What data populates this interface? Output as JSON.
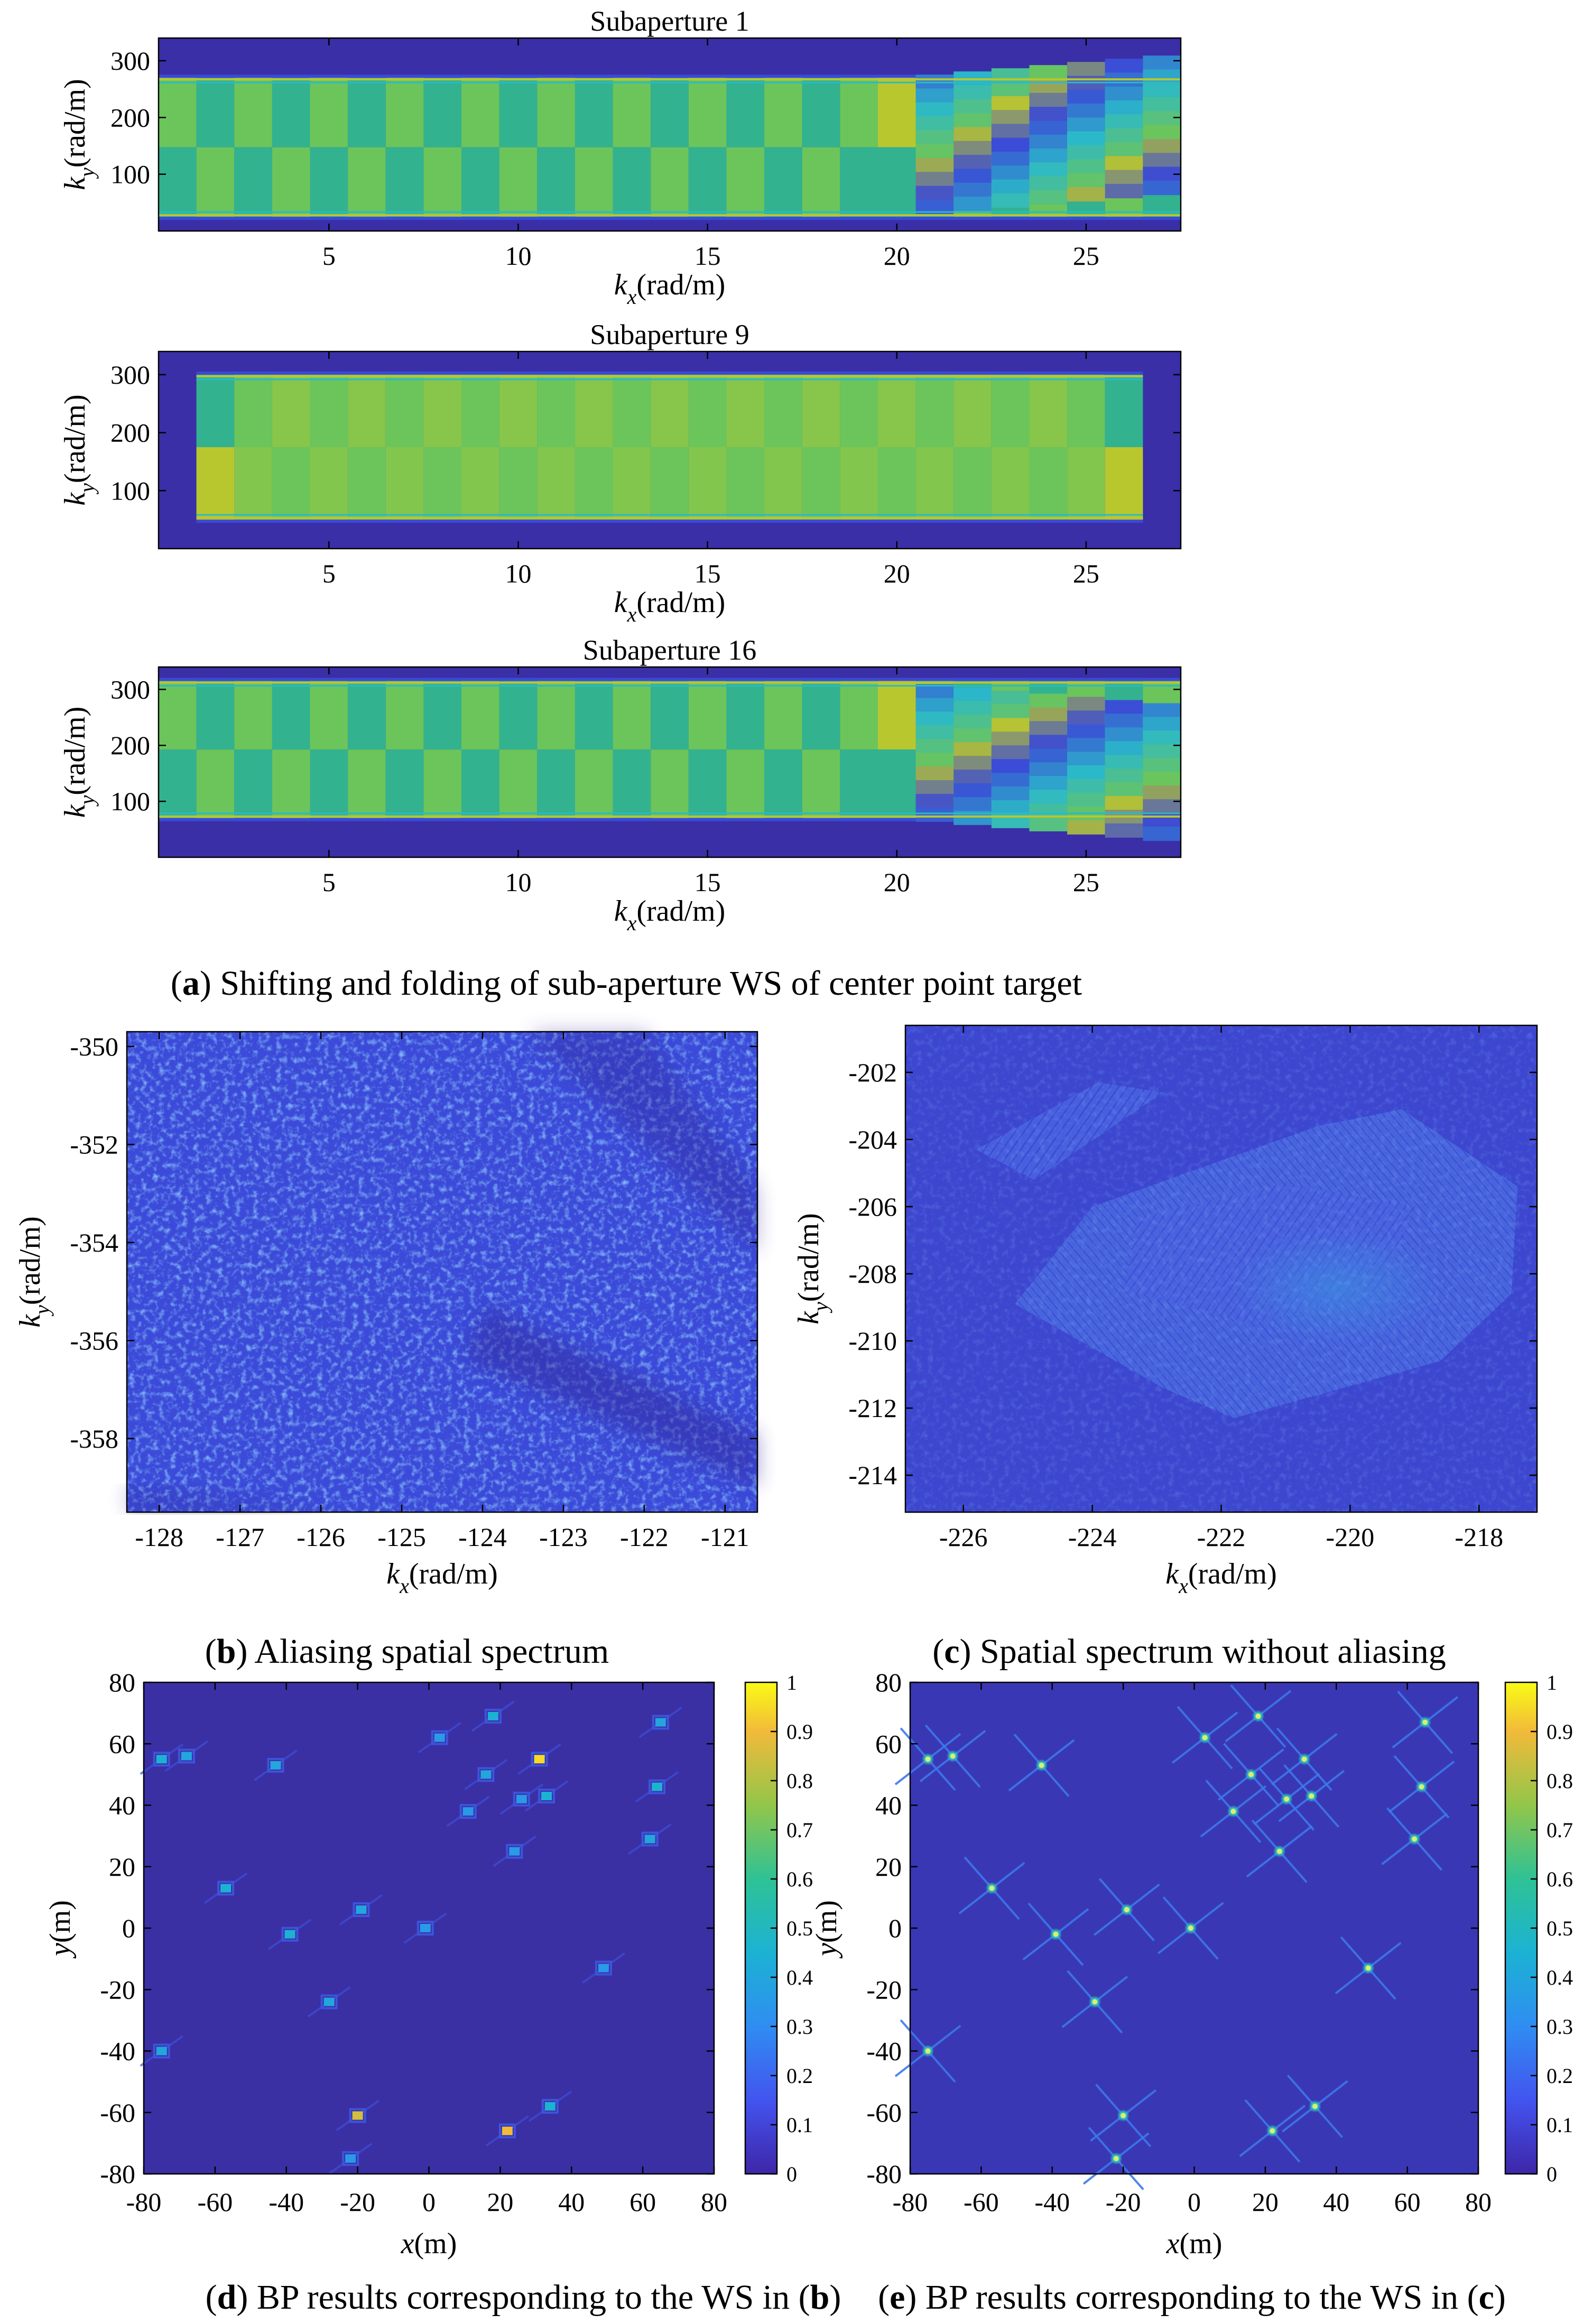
{
  "colors": {
    "bg_dark": "#3a2fa6",
    "bg_blue": "#3b49d6",
    "band_mid": "#33b28f",
    "band_green": "#6cc55a",
    "band_yellow": "#b9c72e",
    "peak_yellow": "#f9e520",
    "cyan": "#2bb9c9",
    "axis": "#000000"
  },
  "chart_data": [
    {
      "id": "a1",
      "type": "heatmap",
      "title": "Subaperture 1",
      "xlabel": "k_x(rad/m)",
      "ylabel": "k_y(rad/m)",
      "xlim": [
        0.5,
        27.5
      ],
      "ylim": [
        0,
        340
      ],
      "xticks": [
        "5",
        "10",
        "15",
        "20",
        "25"
      ],
      "xtick_values": [
        5,
        10,
        15,
        20,
        25
      ],
      "yticks": [
        "300",
        "200",
        "100"
      ],
      "ytick_values": [
        300,
        200,
        100
      ],
      "band": [
        25,
        270
      ],
      "shifted_columns": [
        20.5,
        21.5,
        22.5,
        23.5,
        24.5,
        25.5,
        26.5
      ]
    },
    {
      "id": "a9",
      "type": "heatmap",
      "title": "Subaperture 9",
      "xlabel": "k_x(rad/m)",
      "ylabel": "k_y(rad/m)",
      "xlim": [
        0.5,
        27.5
      ],
      "ylim": [
        0,
        340
      ],
      "xticks": [
        "5",
        "10",
        "15",
        "20",
        "25"
      ],
      "xtick_values": [
        5,
        10,
        15,
        20,
        25
      ],
      "yticks": [
        "300",
        "200",
        "100"
      ],
      "ytick_values": [
        300,
        200,
        100
      ],
      "band": [
        50,
        300
      ],
      "kx_range": [
        1.5,
        26.5
      ]
    },
    {
      "id": "a16",
      "type": "heatmap",
      "title": "Subaperture 16",
      "xlabel": "k_x(rad/m)",
      "ylabel": "k_y(rad/m)",
      "xlim": [
        0.5,
        27.5
      ],
      "ylim": [
        0,
        340
      ],
      "xticks": [
        "5",
        "10",
        "15",
        "20",
        "25"
      ],
      "xtick_values": [
        5,
        10,
        15,
        20,
        25
      ],
      "yticks": [
        "300",
        "200",
        "100"
      ],
      "ytick_values": [
        300,
        200,
        100
      ],
      "band": [
        70,
        315
      ],
      "shifted_columns": [
        20.5,
        21.5,
        22.5,
        23.5,
        24.5,
        25.5,
        26.5
      ]
    },
    {
      "id": "b",
      "type": "heatmap",
      "xlabel": "k_x(rad/m)",
      "ylabel": "k_y(rad/m)",
      "xlim": [
        -128.4,
        -120.6
      ],
      "ylim": [
        -359.5,
        -349.7
      ],
      "xticks": [
        "-128",
        "-127",
        "-126",
        "-125",
        "-124",
        "-123",
        "-122",
        "-121"
      ],
      "xtick_values": [
        -128,
        -127,
        -126,
        -125,
        -124,
        -123,
        -122,
        -121
      ],
      "yticks": [
        "-350",
        "-352",
        "-354",
        "-356",
        "-358"
      ],
      "ytick_values": [
        -350,
        -352,
        -354,
        -356,
        -358
      ]
    },
    {
      "id": "c",
      "type": "heatmap",
      "xlabel": "k_x(rad/m)",
      "ylabel": "k_y(rad/m)",
      "xlim": [
        -226.9,
        -217.1
      ],
      "ylim": [
        -215.1,
        -200.6
      ],
      "xticks": [
        "-226",
        "-224",
        "-222",
        "-220",
        "-218"
      ],
      "xtick_values": [
        -226,
        -224,
        -222,
        -220,
        -218
      ],
      "yticks": [
        "-202",
        "-204",
        "-206",
        "-208",
        "-210",
        "-212",
        "-214"
      ],
      "ytick_values": [
        -202,
        -204,
        -206,
        -208,
        -210,
        -212,
        -214
      ]
    },
    {
      "id": "d",
      "type": "scatter",
      "xlabel": "x(m)",
      "ylabel": "y(m)",
      "xlim": [
        -80,
        80
      ],
      "ylim": [
        -80,
        80
      ],
      "xticks": [
        "-80",
        "-60",
        "-40",
        "-20",
        "0",
        "20",
        "40",
        "60",
        "80"
      ],
      "xtick_values": [
        -80,
        -60,
        -40,
        -20,
        0,
        20,
        40,
        60,
        80
      ],
      "yticks": [
        "80",
        "60",
        "40",
        "20",
        "0",
        "-20",
        "-40",
        "-60",
        "-80"
      ],
      "ytick_values": [
        80,
        60,
        40,
        20,
        0,
        -20,
        -40,
        -60,
        -80
      ],
      "colorbar_ticks": [
        "1",
        "0.9",
        "0.8",
        "0.7",
        "0.6",
        "0.5",
        "0.4",
        "0.3",
        "0.2",
        "0.1",
        "0"
      ],
      "colorbar_values": [
        1,
        0.9,
        0.8,
        0.7,
        0.6,
        0.5,
        0.4,
        0.3,
        0.2,
        0.1,
        0
      ],
      "points": [
        {
          "x": -75,
          "y": 55,
          "v": 0.45
        },
        {
          "x": -68,
          "y": 56,
          "v": 0.4
        },
        {
          "x": -43,
          "y": 53,
          "v": 0.4
        },
        {
          "x": 3,
          "y": 62,
          "v": 0.35
        },
        {
          "x": 18,
          "y": 69,
          "v": 0.45
        },
        {
          "x": 31,
          "y": 55,
          "v": 0.95
        },
        {
          "x": 65,
          "y": 67,
          "v": 0.4
        },
        {
          "x": 16,
          "y": 50,
          "v": 0.4
        },
        {
          "x": 26,
          "y": 42,
          "v": 0.35
        },
        {
          "x": 33,
          "y": 43,
          "v": 0.45
        },
        {
          "x": 11,
          "y": 38,
          "v": 0.35
        },
        {
          "x": 64,
          "y": 46,
          "v": 0.45
        },
        {
          "x": 24,
          "y": 25,
          "v": 0.35
        },
        {
          "x": 62,
          "y": 29,
          "v": 0.4
        },
        {
          "x": -57,
          "y": 13,
          "v": 0.45
        },
        {
          "x": -19,
          "y": 6,
          "v": 0.4
        },
        {
          "x": -1,
          "y": 0,
          "v": 0.35
        },
        {
          "x": -39,
          "y": -2,
          "v": 0.45
        },
        {
          "x": 49,
          "y": -13,
          "v": 0.35
        },
        {
          "x": -28,
          "y": -24,
          "v": 0.4
        },
        {
          "x": -75,
          "y": -40,
          "v": 0.4
        },
        {
          "x": 34,
          "y": -58,
          "v": 0.45
        },
        {
          "x": -20,
          "y": -61,
          "v": 0.85
        },
        {
          "x": 22,
          "y": -66,
          "v": 0.9
        },
        {
          "x": -22,
          "y": -75,
          "v": 0.35
        }
      ]
    },
    {
      "id": "e",
      "type": "scatter",
      "xlabel": "x(m)",
      "ylabel": "y(m)",
      "xlim": [
        -80,
        80
      ],
      "ylim": [
        -80,
        80
      ],
      "xticks": [
        "-80",
        "-60",
        "-40",
        "-20",
        "0",
        "20",
        "40",
        "60",
        "80"
      ],
      "xtick_values": [
        -80,
        -60,
        -40,
        -20,
        0,
        20,
        40,
        60,
        80
      ],
      "yticks": [
        "80",
        "60",
        "40",
        "20",
        "0",
        "-20",
        "-40",
        "-60",
        "-80"
      ],
      "ytick_values": [
        80,
        60,
        40,
        20,
        0,
        -20,
        -40,
        -60,
        -80
      ],
      "colorbar_ticks": [
        "1",
        "0.9",
        "0.8",
        "0.7",
        "0.6",
        "0.5",
        "0.4",
        "0.3",
        "0.2",
        "0.1",
        "0"
      ],
      "colorbar_values": [
        1,
        0.9,
        0.8,
        0.7,
        0.6,
        0.5,
        0.4,
        0.3,
        0.2,
        0.1,
        0
      ],
      "points": [
        {
          "x": -75,
          "y": 55,
          "v": 0.6
        },
        {
          "x": -68,
          "y": 56,
          "v": 0.6
        },
        {
          "x": -43,
          "y": 53,
          "v": 0.6
        },
        {
          "x": 3,
          "y": 62,
          "v": 0.6
        },
        {
          "x": 18,
          "y": 69,
          "v": 0.6
        },
        {
          "x": 31,
          "y": 55,
          "v": 0.6
        },
        {
          "x": 65,
          "y": 67,
          "v": 0.6
        },
        {
          "x": 16,
          "y": 50,
          "v": 0.6
        },
        {
          "x": 26,
          "y": 42,
          "v": 0.6
        },
        {
          "x": 33,
          "y": 43,
          "v": 0.6
        },
        {
          "x": 11,
          "y": 38,
          "v": 0.6
        },
        {
          "x": 64,
          "y": 46,
          "v": 0.6
        },
        {
          "x": 24,
          "y": 25,
          "v": 0.6
        },
        {
          "x": 62,
          "y": 29,
          "v": 0.6
        },
        {
          "x": -57,
          "y": 13,
          "v": 0.6
        },
        {
          "x": -19,
          "y": 6,
          "v": 0.6
        },
        {
          "x": -1,
          "y": 0,
          "v": 0.6
        },
        {
          "x": -39,
          "y": -2,
          "v": 0.6
        },
        {
          "x": 49,
          "y": -13,
          "v": 0.6
        },
        {
          "x": -28,
          "y": -24,
          "v": 0.6
        },
        {
          "x": -75,
          "y": -40,
          "v": 0.6
        },
        {
          "x": 34,
          "y": -58,
          "v": 0.6
        },
        {
          "x": -20,
          "y": -61,
          "v": 0.6
        },
        {
          "x": 22,
          "y": -66,
          "v": 0.6
        },
        {
          "x": -22,
          "y": -75,
          "v": 0.6
        }
      ]
    }
  ],
  "captions": {
    "a": {
      "label": "a",
      "text": " Shifting and folding of sub-aperture WS of center point target"
    },
    "b": {
      "label": "b",
      "text": " Aliasing spatial spectrum"
    },
    "c": {
      "label": "c",
      "text": " Spatial spectrum without aliasing"
    },
    "d": {
      "label": "d",
      "text": " BP results corresponding to the WS in (",
      "ref": "b",
      "end": ")"
    },
    "e": {
      "label": "e",
      "text": " BP results corresponding to the WS in (",
      "ref": "c",
      "end": ")"
    }
  }
}
